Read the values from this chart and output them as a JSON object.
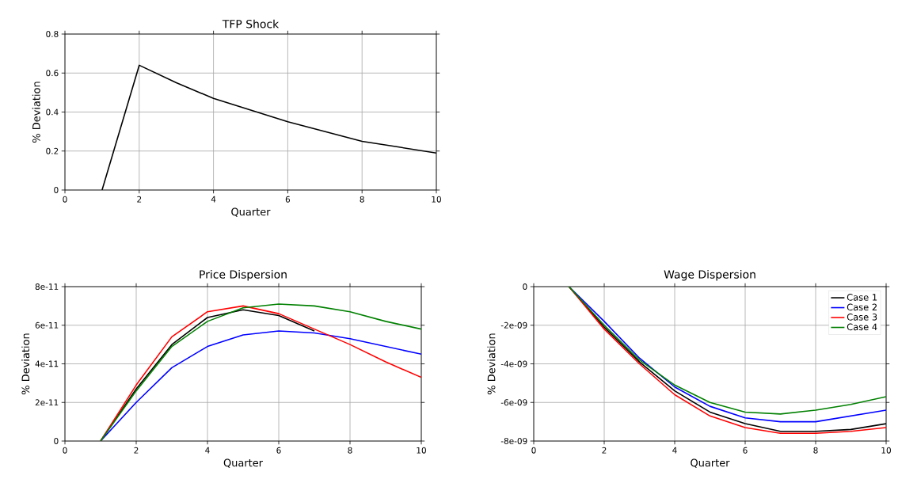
{
  "chart_data": [
    {
      "type": "line",
      "title": "TFP Shock",
      "xlabel": "Quarter",
      "ylabel": "% Deviation",
      "x": [
        1,
        2,
        3,
        4,
        5,
        6,
        7,
        8,
        9,
        10
      ],
      "values": [
        0,
        0.64,
        0.55,
        0.47,
        0.41,
        0.35,
        0.3,
        0.25,
        0.22,
        0.19
      ],
      "color": "#000000",
      "xlim": [
        0,
        10
      ],
      "xticks": [
        0,
        2,
        4,
        6,
        8,
        10
      ],
      "ylim": [
        0,
        0.8
      ],
      "yticks": [
        0,
        0.2,
        0.4,
        0.6,
        0.8
      ],
      "grid": true
    },
    {
      "type": "line",
      "title": "Price Dispersion",
      "xlabel": "Quarter",
      "ylabel": "% Deviation",
      "x": [
        1,
        2,
        3,
        4,
        5,
        6,
        7,
        8,
        9,
        10
      ],
      "series": [
        {
          "color": "#000000",
          "values": [
            0,
            2.7e-11,
            5e-11,
            6.4e-11,
            6.8e-11,
            6.5e-11,
            5.7e-11,
            null,
            null,
            null
          ]
        },
        {
          "color": "#0000ff",
          "values": [
            0,
            2e-11,
            3.8e-11,
            4.9e-11,
            5.5e-11,
            5.7e-11,
            5.6e-11,
            5.3e-11,
            4.9e-11,
            4.5e-11
          ]
        },
        {
          "color": "#ff0000",
          "values": [
            0,
            2.9e-11,
            5.4e-11,
            6.7e-11,
            7e-11,
            6.6e-11,
            5.8e-11,
            5e-11,
            4.1e-11,
            3.3e-11
          ]
        },
        {
          "color": "#008000",
          "values": [
            0,
            2.6e-11,
            4.9e-11,
            6.2e-11,
            6.9e-11,
            7.1e-11,
            7e-11,
            6.7e-11,
            6.2e-11,
            5.8e-11
          ]
        }
      ],
      "xlim": [
        0,
        10
      ],
      "xticks": [
        0,
        2,
        4,
        6,
        8,
        10
      ],
      "ylim": [
        0,
        8e-11
      ],
      "yticks": [
        0,
        {
          "value": 2e-11,
          "label": "2e-11"
        },
        {
          "value": 4e-11,
          "label": "4e-11"
        },
        {
          "value": 6e-11,
          "label": "6e-11"
        },
        {
          "value": 8e-11,
          "label": "8e-11"
        }
      ],
      "grid": true
    },
    {
      "type": "line",
      "title": "Wage Dispersion",
      "xlabel": "Quarter",
      "ylabel": "% Deviation",
      "x": [
        1,
        2,
        3,
        4,
        5,
        6,
        7,
        8,
        9,
        10
      ],
      "series": [
        {
          "name": "Case 1",
          "color": "#000000",
          "values": [
            0,
            -2.1e-09,
            -3.9e-09,
            -5.4e-09,
            -6.5e-09,
            -7.1e-09,
            -7.5e-09,
            -7.5e-09,
            -7.4e-09,
            -7.1e-09
          ]
        },
        {
          "name": "Case 2",
          "color": "#0000ff",
          "values": [
            0,
            -1.8e-09,
            -3.7e-09,
            -5.2e-09,
            -6.2e-09,
            -6.8e-09,
            -7e-09,
            -7e-09,
            -6.7e-09,
            -6.4e-09
          ]
        },
        {
          "name": "Case 3",
          "color": "#ff0000",
          "values": [
            0,
            -2.2e-09,
            -4e-09,
            -5.6e-09,
            -6.7e-09,
            -7.3e-09,
            -7.6e-09,
            -7.6e-09,
            -7.5e-09,
            -7.3e-09
          ]
        },
        {
          "name": "Case 4",
          "color": "#008000",
          "values": [
            0,
            -2e-09,
            -3.8e-09,
            -5.1e-09,
            -6e-09,
            -6.5e-09,
            -6.6e-09,
            -6.4e-09,
            -6.1e-09,
            -5.7e-09
          ]
        }
      ],
      "xlim": [
        0,
        10
      ],
      "xticks": [
        0,
        2,
        4,
        6,
        8,
        10
      ],
      "ylim": [
        -8e-09,
        0
      ],
      "yticks": [
        {
          "value": -8e-09,
          "label": "-8e-09"
        },
        {
          "value": -6e-09,
          "label": "-6e-09"
        },
        {
          "value": -4e-09,
          "label": "-4e-09"
        },
        {
          "value": -2e-09,
          "label": "-2e-09"
        },
        0
      ],
      "grid": true,
      "legend": "top right"
    }
  ]
}
